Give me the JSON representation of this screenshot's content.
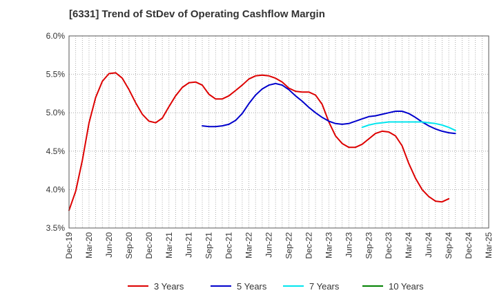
{
  "chart_data": {
    "type": "line",
    "title": "[6331]  Trend of StDev of Operating Cashflow Margin",
    "xlabel": "",
    "ylabel": "",
    "ylim": [
      3.5,
      6.0
    ],
    "y_ticks": [
      "3.5%",
      "4.0%",
      "4.5%",
      "5.0%",
      "5.5%",
      "6.0%"
    ],
    "y_tick_values": [
      3.5,
      4.0,
      4.5,
      5.0,
      5.5,
      6.0
    ],
    "x_ticks": [
      "Dec-19",
      "Mar-20",
      "Jun-20",
      "Sep-20",
      "Dec-20",
      "Mar-21",
      "Jun-21",
      "Sep-21",
      "Dec-21",
      "Mar-22",
      "Jun-22",
      "Sep-22",
      "Dec-22",
      "Mar-23",
      "Jun-23",
      "Sep-23",
      "Dec-23",
      "Mar-24",
      "Jun-24",
      "Sep-24",
      "Dec-24",
      "Mar-25"
    ],
    "x_start": "2019-12",
    "x_end": "2025-03",
    "grid": true,
    "legend_position": "bottom",
    "series": [
      {
        "name": "3 Years",
        "color": "#dd0000",
        "start": "2019-12",
        "values": [
          3.73,
          3.98,
          4.38,
          4.87,
          5.2,
          5.41,
          5.51,
          5.52,
          5.45,
          5.3,
          5.13,
          4.98,
          4.89,
          4.87,
          4.93,
          5.08,
          5.22,
          5.33,
          5.39,
          5.4,
          5.36,
          5.24,
          5.18,
          5.18,
          5.22,
          5.29,
          5.36,
          5.44,
          5.48,
          5.49,
          5.48,
          5.45,
          5.4,
          5.32,
          5.28,
          5.27,
          5.27,
          5.23,
          5.11,
          4.88,
          4.7,
          4.6,
          4.55,
          4.55,
          4.59,
          4.66,
          4.73,
          4.76,
          4.75,
          4.7,
          4.57,
          4.34,
          4.15,
          4.0,
          3.91,
          3.85,
          3.84,
          3.88
        ]
      },
      {
        "name": "5 Years",
        "color": "#0000cc",
        "start": "2021-08",
        "values": [
          4.83,
          4.82,
          4.82,
          4.83,
          4.85,
          4.9,
          4.99,
          5.12,
          5.23,
          5.31,
          5.36,
          5.38,
          5.36,
          5.3,
          5.22,
          5.15,
          5.07,
          5.0,
          4.94,
          4.89,
          4.86,
          4.85,
          4.86,
          4.89,
          4.92,
          4.95,
          4.96,
          4.98,
          5.0,
          5.02,
          5.02,
          4.99,
          4.94,
          4.88,
          4.83,
          4.79,
          4.76,
          4.74,
          4.73
        ]
      },
      {
        "name": "7 Years",
        "color": "#00e5ee",
        "start": "2023-08",
        "values": [
          4.81,
          4.84,
          4.86,
          4.87,
          4.88,
          4.88,
          4.88,
          4.88,
          4.88,
          4.88,
          4.87,
          4.86,
          4.84,
          4.81,
          4.77
        ]
      },
      {
        "name": "10 Years",
        "color": "#008000",
        "start": "2024-09",
        "values": []
      }
    ]
  }
}
